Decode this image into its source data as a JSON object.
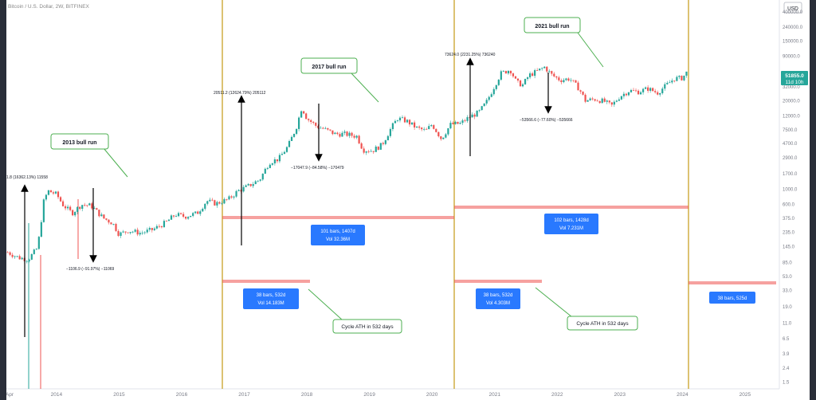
{
  "header": {
    "symbol_line": "Bitcoin / U.S. Dollar, 2W, BITFINEX"
  },
  "price_axis": {
    "currency": "USD",
    "ticks": [
      "400000.0",
      "240000.0",
      "150000.0",
      "90000.0",
      "51855.0",
      "32000.0",
      "20000.0",
      "12000.0",
      "7500.0",
      "4700.0",
      "2900.0",
      "1700.0",
      "1000.0",
      "600.0",
      "375.0",
      "235.0",
      "145.0",
      "85.0",
      "53.0",
      "33.0",
      "19.0",
      "11.0",
      "6.5",
      "3.9",
      "2.4",
      "1.5"
    ],
    "last_price": "51855.0",
    "countdown": "11d 10h"
  },
  "time_axis": {
    "ticks": [
      "Apr",
      "2014",
      "2015",
      "2016",
      "2017",
      "2018",
      "2019",
      "2020",
      "2021",
      "2022",
      "2023",
      "2024",
      "2025"
    ]
  },
  "colors": {
    "cycle_line": "#c9a227",
    "range_line": "#ef5350",
    "label_bg": "#2979ff",
    "label_text": "#ffffff",
    "up": "#26a69a",
    "down": "#ef5350",
    "callout_border": "#4caf50",
    "price_tag": "#26a69a"
  },
  "callouts": {
    "bull_2013": "2013 bull run",
    "bull_2017": "2017 bull run",
    "bull_2021": "2021 bull run",
    "ath_1": "Cycle ATH in 532 days",
    "ath_2": "Cycle ATH in 532 days"
  },
  "range_labels": {
    "r1_a": "101 bars, 1407d",
    "r1_b": "Vol 32.36M",
    "r2_a": "102 bars, 1428d",
    "r2_b": "Vol 7.231M",
    "r3_a": "38 bars, 532d",
    "r3_b": "Vol 14.183M",
    "r4_a": "38 bars, 532d",
    "r4_b": "Vol 4.303M",
    "r5_a": "38 bars, 525d"
  },
  "measure_labels": {
    "m2013_up": "1.8 (16362.13%) 11558",
    "m2013_down": "−1106.9 (−91.97%) −11069",
    "m2017_up": "20511.2 (12624.79%) 205112",
    "m2017_down": "−17047.9 (−84.58%) −170479",
    "m2021_up": "73624.0 (2231.25%) 736240",
    "m2021_down": "−53566.6 (−77.60%) −535666"
  },
  "chart_data": {
    "type": "candlestick",
    "title": "Bitcoin / U.S. Dollar, 2W, BITFINEX",
    "x_range": [
      2013.25,
      2025.6
    ],
    "y_scale": "log",
    "y_range": [
      1.3,
      480000
    ],
    "series": [
      {
        "values": [
          {
            "x": 2013.27,
            "y": 120
          },
          {
            "x": 2013.45,
            "y": 100
          },
          {
            "x": 2013.6,
            "y": 95
          },
          {
            "x": 2013.75,
            "y": 140
          },
          {
            "x": 2013.85,
            "y": 700
          },
          {
            "x": 2013.92,
            "y": 950
          },
          {
            "x": 2014.05,
            "y": 850
          },
          {
            "x": 2014.15,
            "y": 600
          },
          {
            "x": 2014.3,
            "y": 450
          },
          {
            "x": 2014.45,
            "y": 600
          },
          {
            "x": 2014.6,
            "y": 580
          },
          {
            "x": 2014.8,
            "y": 380
          },
          {
            "x": 2014.95,
            "y": 320
          },
          {
            "x": 2015.05,
            "y": 220
          },
          {
            "x": 2015.2,
            "y": 250
          },
          {
            "x": 2015.4,
            "y": 230
          },
          {
            "x": 2015.6,
            "y": 260
          },
          {
            "x": 2015.8,
            "y": 330
          },
          {
            "x": 2015.95,
            "y": 430
          },
          {
            "x": 2016.1,
            "y": 400
          },
          {
            "x": 2016.3,
            "y": 450
          },
          {
            "x": 2016.45,
            "y": 680
          },
          {
            "x": 2016.6,
            "y": 620
          },
          {
            "x": 2016.8,
            "y": 720
          },
          {
            "x": 2016.95,
            "y": 950
          },
          {
            "x": 2017.1,
            "y": 1100
          },
          {
            "x": 2017.3,
            "y": 1400
          },
          {
            "x": 2017.45,
            "y": 2500
          },
          {
            "x": 2017.6,
            "y": 2800
          },
          {
            "x": 2017.75,
            "y": 4300
          },
          {
            "x": 2017.88,
            "y": 8000
          },
          {
            "x": 2017.97,
            "y": 16000
          },
          {
            "x": 2018.05,
            "y": 11000
          },
          {
            "x": 2018.2,
            "y": 8500
          },
          {
            "x": 2018.35,
            "y": 7500
          },
          {
            "x": 2018.5,
            "y": 6500
          },
          {
            "x": 2018.65,
            "y": 6500
          },
          {
            "x": 2018.85,
            "y": 6000
          },
          {
            "x": 2018.95,
            "y": 3800
          },
          {
            "x": 2019.1,
            "y": 3700
          },
          {
            "x": 2019.25,
            "y": 4500
          },
          {
            "x": 2019.4,
            "y": 8000
          },
          {
            "x": 2019.5,
            "y": 11000
          },
          {
            "x": 2019.65,
            "y": 10000
          },
          {
            "x": 2019.8,
            "y": 8000
          },
          {
            "x": 2019.95,
            "y": 7200
          },
          {
            "x": 2020.05,
            "y": 9000
          },
          {
            "x": 2020.2,
            "y": 5500
          },
          {
            "x": 2020.35,
            "y": 9000
          },
          {
            "x": 2020.5,
            "y": 9200
          },
          {
            "x": 2020.65,
            "y": 11500
          },
          {
            "x": 2020.8,
            "y": 13500
          },
          {
            "x": 2020.92,
            "y": 19000
          },
          {
            "x": 2021.05,
            "y": 33000
          },
          {
            "x": 2021.15,
            "y": 50000
          },
          {
            "x": 2021.3,
            "y": 57000
          },
          {
            "x": 2021.4,
            "y": 37000
          },
          {
            "x": 2021.5,
            "y": 34000
          },
          {
            "x": 2021.6,
            "y": 47000
          },
          {
            "x": 2021.75,
            "y": 55000
          },
          {
            "x": 2021.85,
            "y": 62000
          },
          {
            "x": 2021.97,
            "y": 47000
          },
          {
            "x": 2022.1,
            "y": 40000
          },
          {
            "x": 2022.25,
            "y": 42000
          },
          {
            "x": 2022.4,
            "y": 30000
          },
          {
            "x": 2022.5,
            "y": 20000
          },
          {
            "x": 2022.65,
            "y": 21000
          },
          {
            "x": 2022.8,
            "y": 19500
          },
          {
            "x": 2022.92,
            "y": 16800
          },
          {
            "x": 2023.05,
            "y": 23000
          },
          {
            "x": 2023.2,
            "y": 28000
          },
          {
            "x": 2023.35,
            "y": 27000
          },
          {
            "x": 2023.5,
            "y": 30000
          },
          {
            "x": 2023.65,
            "y": 26000
          },
          {
            "x": 2023.8,
            "y": 34000
          },
          {
            "x": 2023.92,
            "y": 42000
          },
          {
            "x": 2024.05,
            "y": 43000
          },
          {
            "x": 2024.12,
            "y": 51855
          }
        ]
      }
    ]
  }
}
